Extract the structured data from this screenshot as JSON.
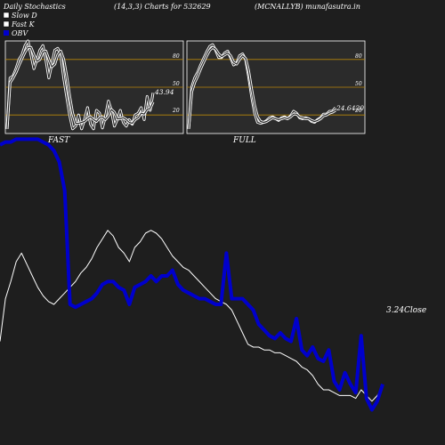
{
  "header": {
    "left": "Daily Stochastics",
    "params": "(14,3,3) Charts for 532629",
    "ticker": "(MCNALLYB) munafasutra.in"
  },
  "legend": [
    {
      "label": "Slow  D",
      "color": "#ffffff"
    },
    {
      "label": "Fast K",
      "color": "#ffffff"
    },
    {
      "label": "OBV",
      "color": "#0000cc"
    }
  ],
  "colors": {
    "background": "#1e1e1e",
    "panel": "#2b2b2b",
    "level_line": "#b8860b",
    "stoch_line": "#ffffff",
    "obv_line": "#0000cc",
    "price_line": "#ffffff"
  },
  "chart_data": [
    {
      "type": "line",
      "panel_label": "FAST",
      "value_label": "43.94",
      "ylim": [
        0,
        100
      ],
      "levels": [
        20,
        50,
        80
      ],
      "tick_labels": [
        "80",
        "50",
        "20"
      ],
      "series": [
        {
          "role": "fast-k",
          "values": [
            5,
            60,
            62,
            70,
            80,
            85,
            95,
            100,
            85,
            70,
            80,
            90,
            95,
            80,
            60,
            75,
            90,
            92,
            85,
            60,
            40,
            20,
            5,
            8,
            20,
            5,
            15,
            28,
            10,
            5,
            25,
            22,
            6,
            18,
            35,
            25,
            8,
            15,
            25,
            12,
            8,
            15,
            10,
            20,
            22,
            28,
            15,
            40,
            25,
            44
          ]
        },
        {
          "role": "slow-d",
          "values": [
            5,
            55,
            60,
            66,
            74,
            81,
            88,
            93,
            93,
            85,
            78,
            80,
            88,
            89,
            80,
            72,
            75,
            85,
            89,
            80,
            62,
            40,
            22,
            11,
            11,
            12,
            13,
            16,
            18,
            15,
            13,
            17,
            18,
            15,
            19,
            26,
            23,
            16,
            16,
            17,
            15,
            12,
            11,
            15,
            17,
            22,
            21,
            26,
            27,
            34
          ]
        }
      ]
    },
    {
      "type": "line",
      "panel_label": "FULL",
      "value_label": "24.6420",
      "ylim": [
        0,
        100
      ],
      "levels": [
        20,
        50,
        80
      ],
      "tick_labels": [
        "80",
        "50",
        "20"
      ],
      "series": [
        {
          "role": "full-k",
          "values": [
            5,
            50,
            60,
            66,
            74,
            81,
            88,
            94,
            96,
            90,
            82,
            82,
            87,
            89,
            82,
            74,
            76,
            84,
            86,
            80,
            62,
            40,
            22,
            12,
            11,
            12,
            14,
            17,
            18,
            16,
            14,
            17,
            18,
            16,
            19,
            24,
            22,
            17,
            16,
            17,
            16,
            13,
            12,
            15,
            17,
            21,
            21,
            24,
            24,
            28
          ]
        },
        {
          "role": "full-d",
          "values": [
            5,
            45,
            55,
            62,
            70,
            77,
            84,
            90,
            93,
            91,
            86,
            83,
            85,
            87,
            84,
            77,
            75,
            80,
            84,
            81,
            68,
            48,
            30,
            18,
            13,
            12,
            13,
            15,
            17,
            16,
            15,
            16,
            17,
            16,
            18,
            21,
            21,
            18,
            17,
            16,
            16,
            14,
            13,
            14,
            16,
            19,
            20,
            22,
            23,
            25
          ]
        }
      ]
    },
    {
      "type": "line",
      "close_label": "3.24Close",
      "series": [
        {
          "role": "obv",
          "values": [
            96,
            97,
            97,
            98,
            98,
            98,
            98,
            98,
            97,
            96,
            94,
            90,
            80,
            40,
            39,
            40,
            41,
            42,
            44,
            47,
            48,
            48,
            46,
            45,
            40,
            46,
            47,
            48,
            50,
            48,
            50,
            50,
            52,
            47,
            45,
            44,
            43,
            42,
            42,
            41,
            40,
            40,
            58,
            42,
            42,
            42,
            40,
            38,
            33,
            31,
            29,
            28,
            30,
            28,
            27,
            35,
            24,
            22,
            25,
            21,
            20,
            24,
            13,
            10,
            16,
            12,
            9,
            29,
            7,
            3,
            6,
            12
          ]
        },
        {
          "role": "price",
          "values": [
            27,
            42,
            48,
            55,
            58,
            54,
            50,
            46,
            43,
            41,
            40,
            42,
            44,
            46,
            48,
            51,
            53,
            56,
            60,
            63,
            66,
            64,
            60,
            58,
            55,
            60,
            62,
            65,
            66,
            65,
            63,
            60,
            57,
            55,
            53,
            52,
            50,
            48,
            46,
            44,
            42,
            41,
            40,
            38,
            34,
            30,
            26,
            25,
            25,
            24,
            24,
            23,
            23,
            22,
            21,
            20,
            18,
            17,
            15,
            12,
            10,
            10,
            9,
            8,
            8,
            8,
            7,
            10,
            8,
            6,
            8,
            11
          ]
        }
      ]
    }
  ]
}
